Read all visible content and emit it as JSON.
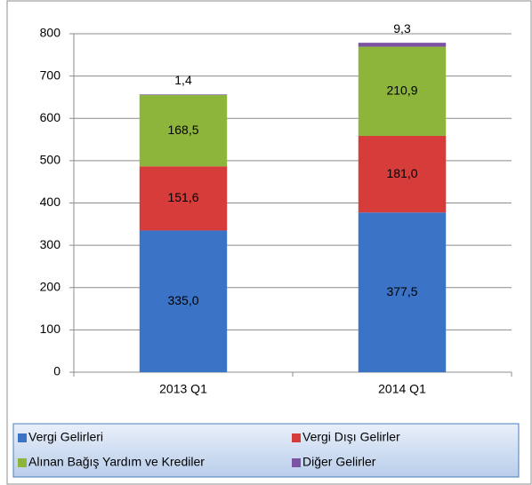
{
  "chart_data": {
    "type": "stacked_bar",
    "categories": [
      "2013 Q1",
      "2014 Q1"
    ],
    "series": [
      {
        "name": "Vergi Gelirleri",
        "color": "#3b74c6",
        "values": [
          335.0,
          377.5
        ],
        "value_labels": [
          "335,0",
          "377,5"
        ]
      },
      {
        "name": "Vergi Dışı Gelirler",
        "color": "#d63c3a",
        "values": [
          151.6,
          181.0
        ],
        "value_labels": [
          "151,6",
          "181,0"
        ]
      },
      {
        "name": "Alınan Bağış Yardım ve Krediler",
        "color": "#8db53c",
        "values": [
          168.5,
          210.9
        ],
        "value_labels": [
          "168,5",
          "210,9"
        ]
      },
      {
        "name": "Diğer Gelirler",
        "color": "#7c52a3",
        "values": [
          1.4,
          9.3
        ],
        "value_labels": [
          "1,4",
          "9,3"
        ]
      }
    ],
    "ylim": [
      0,
      800
    ],
    "yticks": [
      0,
      100,
      200,
      300,
      400,
      500,
      600,
      700,
      800
    ],
    "grid": true
  }
}
